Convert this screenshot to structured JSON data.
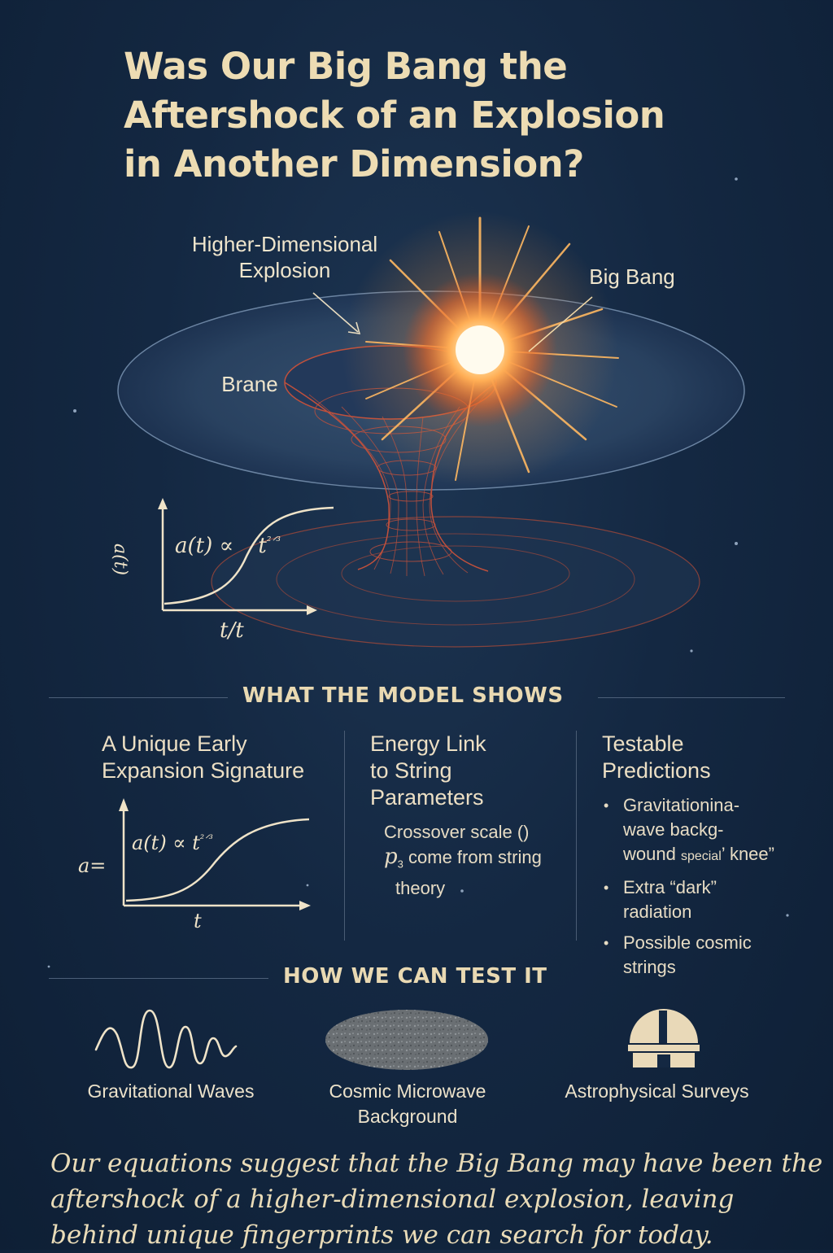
{
  "title": {
    "line1": "Was Our Big Bang the",
    "line2": "Aftershock of an Explosion",
    "line3": "in Another Dimension?"
  },
  "hero": {
    "higher_dim_line1": "Higher-Dimensional",
    "higher_dim_line2": "Explosion",
    "big_bang": "Big Bang",
    "brane": "Brane",
    "graph": {
      "ylabel": "a(t)",
      "formula_prefix": "a(t) ∝",
      "formula_power": "t",
      "formula_exp": "²ᐟ³",
      "xlabel": "t/t"
    }
  },
  "section_model": {
    "heading": "WHAT THE MODEL SHOWS",
    "col1": {
      "title_line1": "A Unique Early",
      "title_line2": "Expansion Signature",
      "graph": {
        "ylabel": "a=",
        "formula_prefix": "a(t) ∝",
        "formula_power": "t",
        "formula_exp": "²ᐟ³",
        "xlabel": "t"
      }
    },
    "col2": {
      "title_line1": "Energy Link",
      "title_line2": "to String",
      "title_line3": "Parameters",
      "text_line1": "Crossover scale ()",
      "text_line2_symbol": "p",
      "text_line2_sub": "3",
      "text_line2": " come from string",
      "text_line3": "theory"
    },
    "col3": {
      "title_line1": "Testable",
      "title_line2": "Predictions",
      "predictions": [
        {
          "line1": "Gravitationina-",
          "line2": "wave backg-",
          "line3a": "wound ",
          "line3b": "special",
          "line3c": "’ knee”"
        },
        {
          "line1": "Extra “dark”",
          "line2": "radiation"
        },
        {
          "line1": "Possible cosmic",
          "line2": "strings"
        }
      ]
    }
  },
  "section_test": {
    "heading": "HOW WE CAN TEST IT",
    "items": [
      {
        "icon": "gravitational-wave-icon",
        "line1": "Gravitational Waves"
      },
      {
        "icon": "cmb-ellipse-icon",
        "line1": "Cosmic Microwave",
        "line2": "Background"
      },
      {
        "icon": "observatory-icon",
        "line1": "Astrophysical Surveys"
      }
    ]
  },
  "summary": {
    "line1": "Our equations suggest that the Big Bang may have been the",
    "line2": "aftershock of a higher-dimensional explosion, leaving",
    "line3": "behind unique fingerprints we can search for today."
  },
  "colors": {
    "background": "#142842",
    "title": "#eddcb3",
    "explosion": "#ff9a3c",
    "grid": "#c0503c"
  }
}
